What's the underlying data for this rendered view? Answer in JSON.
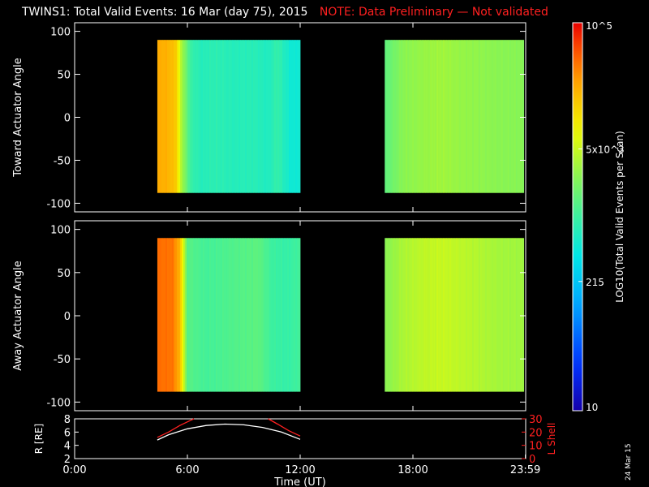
{
  "title": {
    "main": "TWINS1: Total Valid Events: 16 Mar (day  75), 2015",
    "note": "NOTE: Data Preliminary — Not validated",
    "note_color": "#ff2020"
  },
  "stamp": "24 Mar 15",
  "colorbar": {
    "label": "LOG10(Total Valid Events per Scan)",
    "tick_labels": [
      "10^5",
      "5x10^3",
      "215",
      "10"
    ],
    "tick_values": [
      100000,
      5000,
      215,
      10
    ],
    "range": [
      10,
      100000
    ],
    "scale": "log"
  },
  "chart_data": [
    {
      "type": "heatmap",
      "name_label": "Toward Actuator Angle",
      "ylabel": "Toward Actuator Angle",
      "ylim": [
        -110,
        110
      ],
      "yticks": [
        100,
        50,
        0,
        -50,
        -100
      ],
      "xlim": [
        0,
        24
      ],
      "angle_range": [
        -88,
        90
      ],
      "blocks": [
        {
          "t_start": 4.4,
          "t_end": 12.0,
          "time_profile": [
            {
              "t": 4.4,
              "v": 22000
            },
            {
              "t": 4.9,
              "v": 21000
            },
            {
              "t": 5.4,
              "v": 15000
            },
            {
              "t": 5.7,
              "v": 3500
            },
            {
              "t": 6.2,
              "v": 900
            },
            {
              "t": 6.8,
              "v": 700
            },
            {
              "t": 7.5,
              "v": 800
            },
            {
              "t": 8.5,
              "v": 700
            },
            {
              "t": 9.5,
              "v": 750
            },
            {
              "t": 10.3,
              "v": 650
            },
            {
              "t": 10.8,
              "v": 900
            },
            {
              "t": 11.5,
              "v": 500
            },
            {
              "t": 12.0,
              "v": 520
            }
          ]
        },
        {
          "t_start": 16.5,
          "t_end": 23.9,
          "time_profile": [
            {
              "t": 16.5,
              "v": 1500
            },
            {
              "t": 17.5,
              "v": 2600
            },
            {
              "t": 18.5,
              "v": 3000
            },
            {
              "t": 19.5,
              "v": 3400
            },
            {
              "t": 20.5,
              "v": 3000
            },
            {
              "t": 21.5,
              "v": 2800
            },
            {
              "t": 22.5,
              "v": 2600
            },
            {
              "t": 23.9,
              "v": 2500
            }
          ]
        }
      ]
    },
    {
      "type": "heatmap",
      "name_label": "Away Actuator Angle",
      "ylabel": "Away Actuator Angle",
      "ylim": [
        -110,
        110
      ],
      "yticks": [
        100,
        50,
        0,
        -50,
        -100
      ],
      "xlim": [
        0,
        24
      ],
      "angle_range": [
        -88,
        90
      ],
      "blocks": [
        {
          "t_start": 4.4,
          "t_end": 12.0,
          "time_profile": [
            {
              "t": 4.4,
              "v": 40000
            },
            {
              "t": 5.2,
              "v": 38000
            },
            {
              "t": 5.6,
              "v": 20000
            },
            {
              "t": 6.0,
              "v": 1400
            },
            {
              "t": 7.0,
              "v": 1100
            },
            {
              "t": 8.5,
              "v": 1300
            },
            {
              "t": 9.8,
              "v": 1500
            },
            {
              "t": 10.5,
              "v": 1000
            },
            {
              "t": 11.3,
              "v": 900
            },
            {
              "t": 12.0,
              "v": 1100
            }
          ]
        },
        {
          "t_start": 16.5,
          "t_end": 23.9,
          "time_profile": [
            {
              "t": 16.5,
              "v": 2500
            },
            {
              "t": 17.5,
              "v": 3800
            },
            {
              "t": 18.5,
              "v": 4500
            },
            {
              "t": 19.5,
              "v": 5000
            },
            {
              "t": 20.5,
              "v": 4500
            },
            {
              "t": 21.5,
              "v": 4000
            },
            {
              "t": 22.5,
              "v": 3500
            },
            {
              "t": 23.9,
              "v": 3300
            }
          ]
        }
      ]
    },
    {
      "type": "line",
      "ylabel": "R [RE]",
      "ylabel_right": "L Shell",
      "xlabel": "Time (UT)",
      "x_tick_labels": [
        "0:00",
        "6:00",
        "12:00",
        "18:00",
        "23:59"
      ],
      "x_tick_values": [
        0,
        6,
        12,
        18,
        23.983
      ],
      "xlim": [
        0,
        24
      ],
      "ylim": [
        2,
        8
      ],
      "yticks": [
        2,
        4,
        6,
        8
      ],
      "ylim_right": [
        0,
        30
      ],
      "yticks_right": [
        0,
        10,
        20,
        30
      ],
      "series": [
        {
          "axis": "left",
          "color": "#ffffff",
          "x": [
            4.4,
            5.0,
            6.0,
            7.0,
            8.0,
            9.0,
            10.0,
            11.0,
            12.0
          ],
          "y": [
            4.8,
            5.6,
            6.5,
            7.0,
            7.2,
            7.1,
            6.7,
            6.0,
            4.9
          ]
        },
        {
          "axis": "right",
          "color": "#ff2020",
          "x": [
            4.4,
            5.0,
            5.6,
            6.2,
            6.35
          ],
          "y": [
            16,
            20,
            25,
            29,
            30
          ]
        },
        {
          "axis": "right",
          "color": "#ff2020",
          "x": [
            10.3,
            10.8,
            11.4,
            12.0
          ],
          "y": [
            30,
            26,
            21,
            17
          ]
        }
      ]
    }
  ]
}
